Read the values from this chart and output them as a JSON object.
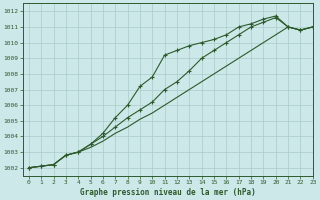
{
  "title": "Graphe pression niveau de la mer (hPa)",
  "bg_color": "#cce8e8",
  "grid_color": "#aacccc",
  "line_color": "#2d5a2d",
  "marker_color": "#2d5a2d",
  "xlim": [
    -0.5,
    23
  ],
  "ylim": [
    1001.5,
    1012.5
  ],
  "xticks": [
    0,
    1,
    2,
    3,
    4,
    5,
    6,
    7,
    8,
    9,
    10,
    11,
    12,
    13,
    14,
    15,
    16,
    17,
    18,
    19,
    20,
    21,
    22,
    23
  ],
  "yticks": [
    1002,
    1003,
    1004,
    1005,
    1006,
    1007,
    1008,
    1009,
    1010,
    1011,
    1012
  ],
  "series1_x": [
    0,
    1,
    2,
    3,
    4,
    5,
    6,
    7,
    8,
    9,
    10,
    11,
    12,
    13,
    14,
    15,
    16,
    17,
    18,
    19,
    20,
    21,
    22,
    23
  ],
  "series1_y": [
    1002.0,
    1002.1,
    1002.2,
    1002.8,
    1003.0,
    1003.3,
    1003.7,
    1004.2,
    1004.6,
    1005.1,
    1005.5,
    1006.0,
    1006.5,
    1007.0,
    1007.5,
    1008.0,
    1008.5,
    1009.0,
    1009.5,
    1010.0,
    1010.5,
    1011.0,
    1010.8,
    1011.0
  ],
  "series2_x": [
    0,
    1,
    2,
    3,
    4,
    5,
    6,
    7,
    8,
    9,
    10,
    11,
    12,
    13,
    14,
    15,
    16,
    17,
    18,
    19,
    20,
    21,
    22,
    23
  ],
  "series2_y": [
    1002.0,
    1002.1,
    1002.2,
    1002.8,
    1003.0,
    1003.5,
    1004.0,
    1004.6,
    1005.2,
    1005.7,
    1006.2,
    1007.0,
    1007.5,
    1008.2,
    1009.0,
    1009.5,
    1010.0,
    1010.5,
    1011.0,
    1011.3,
    1011.6,
    1011.0,
    1010.8,
    1011.0
  ],
  "series3_x": [
    0,
    1,
    2,
    3,
    4,
    5,
    6,
    7,
    8,
    9,
    10,
    11,
    12,
    13,
    14,
    15,
    16,
    17,
    18,
    19,
    20,
    21,
    22,
    23
  ],
  "series3_y": [
    1002.0,
    1002.1,
    1002.2,
    1002.8,
    1003.0,
    1003.5,
    1004.2,
    1005.2,
    1006.0,
    1007.2,
    1007.8,
    1009.2,
    1009.5,
    1009.8,
    1010.0,
    1010.2,
    1010.5,
    1011.0,
    1011.2,
    1011.5,
    1011.7,
    1011.0,
    1010.8,
    1011.0
  ]
}
